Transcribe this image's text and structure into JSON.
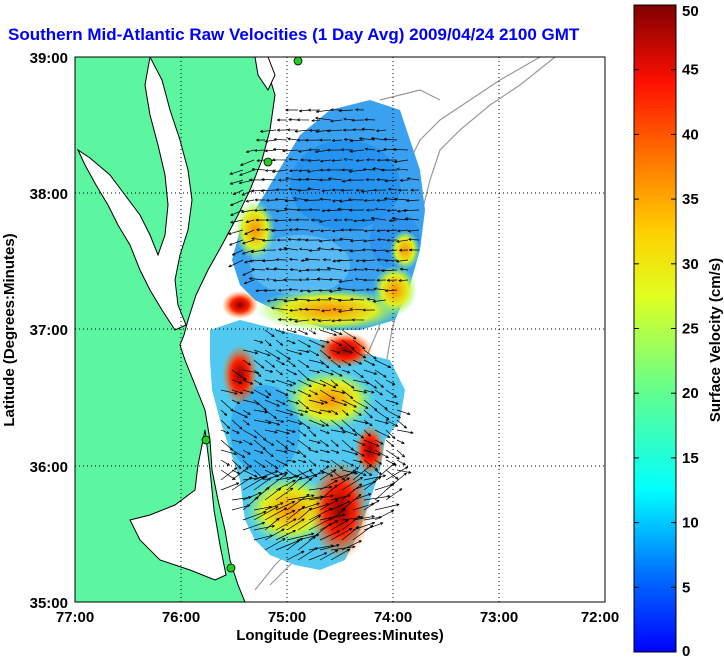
{
  "title": {
    "text": "Southern Mid-Atlantic Raw Velocities (1 Day Avg) 2009/04/24 2100 GMT"
  },
  "map": {
    "xlabel": "Longitude (Degrees:Minutes)",
    "ylabel": "Latitude (Degrees:Minutes)",
    "lon_ticks": [
      "77:00",
      "76:00",
      "75:00",
      "74:00",
      "73:00",
      "72:00"
    ],
    "lat_ticks": [
      "39:00",
      "38:00",
      "37:00",
      "36:00",
      "35:00"
    ],
    "lon_range": [
      -77,
      -72
    ],
    "lat_range": [
      35,
      39
    ],
    "grid": "dotted",
    "land_color": "#5cf5a0",
    "coast_color": "#000000",
    "bathymetry_color": "#999999",
    "station_color": "#22cc22"
  },
  "colorbar": {
    "label": "Surface Velocity (cm/s)",
    "ticks": [
      "0",
      "5",
      "10",
      "15",
      "20",
      "25",
      "30",
      "35",
      "40",
      "45",
      "50"
    ],
    "range": [
      0,
      50
    ],
    "colormap": "jet"
  }
}
